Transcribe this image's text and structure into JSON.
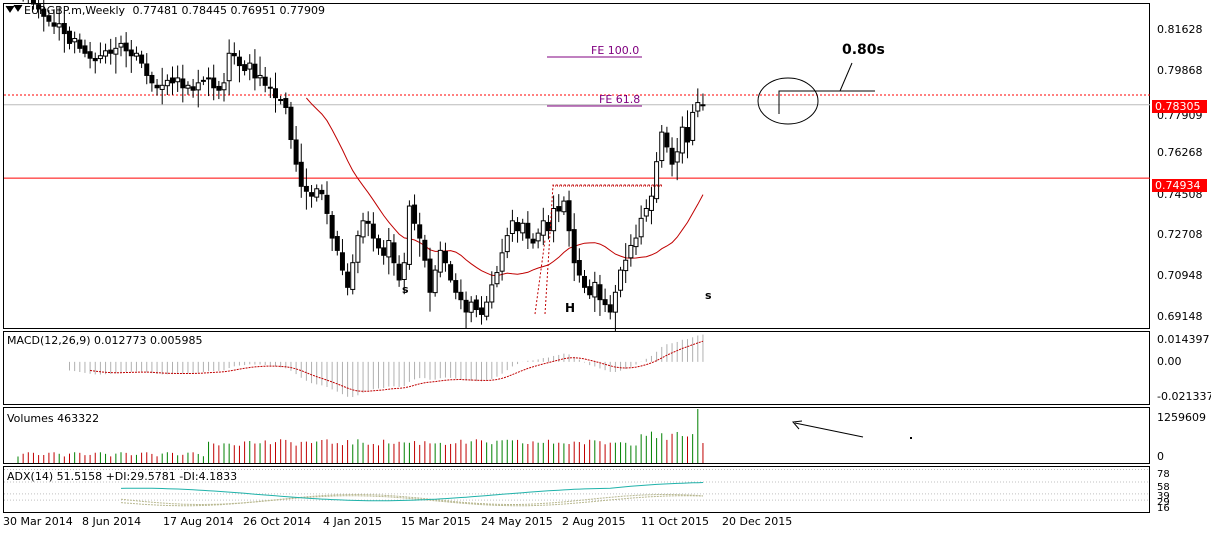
{
  "header": {
    "symbol": "EURGBP.m,Weekly",
    "ohlc": "0.77481 0.78445 0.76951 0.77909"
  },
  "colors": {
    "bull": "#008000",
    "bear": "#c00000",
    "line": "#ff0000",
    "ma": "#c00000",
    "adx_main": "#20b2aa",
    "di_plus": "#b8b890",
    "di_minus": "#b8b890",
    "fe_line": "#800080",
    "grid": "#000000"
  },
  "annotations": {
    "fe100": "FE 100.0",
    "fe618": "FE 61.8",
    "target": "0.80s",
    "s_left": "s",
    "head": "H",
    "s_right": "s"
  },
  "price_boxes": {
    "current": "0.78305",
    "neckline": "0.74934",
    "last_close": "0.77909"
  },
  "chart_data": [
    {
      "type": "candlestick",
      "title": "EURGBP.m,Weekly",
      "yticks": [
        "0.81628",
        "0.79868",
        "0.78305",
        "0.77909",
        "0.76268",
        "0.74934",
        "0.74508",
        "0.72708",
        "0.70948",
        "0.69148"
      ],
      "ylim": [
        0.6885,
        0.82
      ],
      "xticks": [
        "30 Mar 2014",
        "8 Jun 2014",
        "17 Aug 2014",
        "26 Oct 2014",
        "4 Jan 2015",
        "15 Mar 2015",
        "24 May 2015",
        "2 Aug 2015",
        "11 Oct 2015",
        "20 Dec 2015"
      ],
      "closes": [
        0.827,
        0.825,
        0.823,
        0.82,
        0.818,
        0.815,
        0.813,
        0.811,
        0.812,
        0.808,
        0.804,
        0.806,
        0.802,
        0.8,
        0.798,
        0.797,
        0.799,
        0.801,
        0.8,
        0.802,
        0.804,
        0.801,
        0.799,
        0.8,
        0.796,
        0.791,
        0.788,
        0.786,
        0.787,
        0.789,
        0.788,
        0.79,
        0.786,
        0.787,
        0.785,
        0.788,
        0.789,
        0.79,
        0.786,
        0.785,
        0.788,
        0.8,
        0.799,
        0.795,
        0.793,
        0.796,
        0.79,
        0.791,
        0.787,
        0.786,
        0.782,
        0.781,
        0.778,
        0.765,
        0.755,
        0.746,
        0.744,
        0.742,
        0.745,
        0.743,
        0.735,
        0.725,
        0.72,
        0.712,
        0.705,
        0.715,
        0.726,
        0.732,
        0.731,
        0.725,
        0.721,
        0.718,
        0.724,
        0.715,
        0.708,
        0.715,
        0.738,
        0.731,
        0.725,
        0.716,
        0.703,
        0.712,
        0.72,
        0.715,
        0.708,
        0.703,
        0.7,
        0.695,
        0.699,
        0.696,
        0.694,
        0.699,
        0.706,
        0.711,
        0.719,
        0.726,
        0.732,
        0.728,
        0.731,
        0.725,
        0.723,
        0.727,
        0.732,
        0.728,
        0.737,
        0.736,
        0.74,
        0.728,
        0.715,
        0.71,
        0.705,
        0.702,
        0.707,
        0.7,
        0.698,
        0.695,
        0.703,
        0.712,
        0.716,
        0.722,
        0.725,
        0.733,
        0.737,
        0.742,
        0.756,
        0.768,
        0.762,
        0.755,
        0.76,
        0.77,
        0.764,
        0.776,
        0.78,
        0.7791
      ],
      "ma_start_index": 56,
      "macd": {
        "label": "MACD(12,26,9) 0.012773 0.005985",
        "yticks": [
          "0.014397",
          "0.00",
          "-0.021337"
        ],
        "ylim": [
          -0.024,
          0.017
        ]
      },
      "volumes": {
        "label": "Volumes 463322",
        "yticks": [
          "1259609",
          "0"
        ],
        "max": 1259609
      },
      "adx": {
        "label": "ADX(14) 51.5158 +DI:29.5781 -DI:4.1833",
        "yticks": [
          "78",
          "58",
          "39",
          "29",
          "16"
        ],
        "ylim": [
          10,
          82
        ]
      }
    }
  ]
}
